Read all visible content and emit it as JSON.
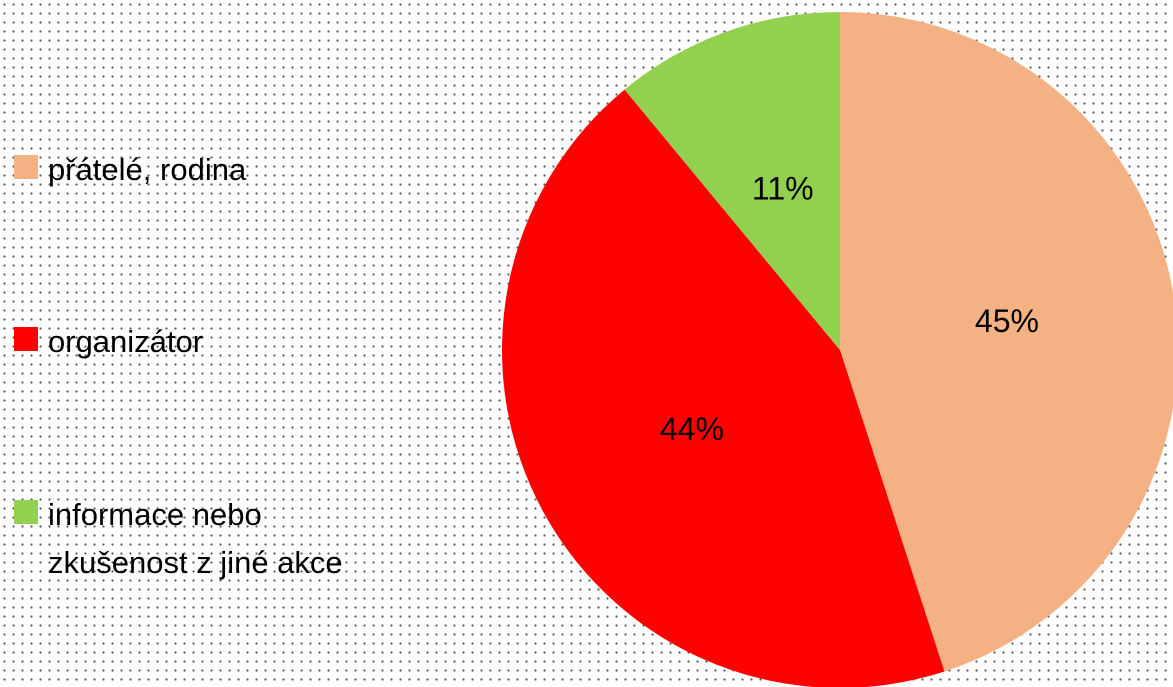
{
  "chart_data": {
    "type": "pie",
    "categories": [
      "přátelé, rodina",
      "organizátor",
      "informace nebo zkušenost z jiné akce"
    ],
    "values": [
      45,
      44,
      11
    ],
    "value_labels": [
      "45%",
      "44%",
      "11%"
    ],
    "colors": [
      "#f4b183",
      "#ff0000",
      "#92d050"
    ],
    "legend": "left"
  }
}
